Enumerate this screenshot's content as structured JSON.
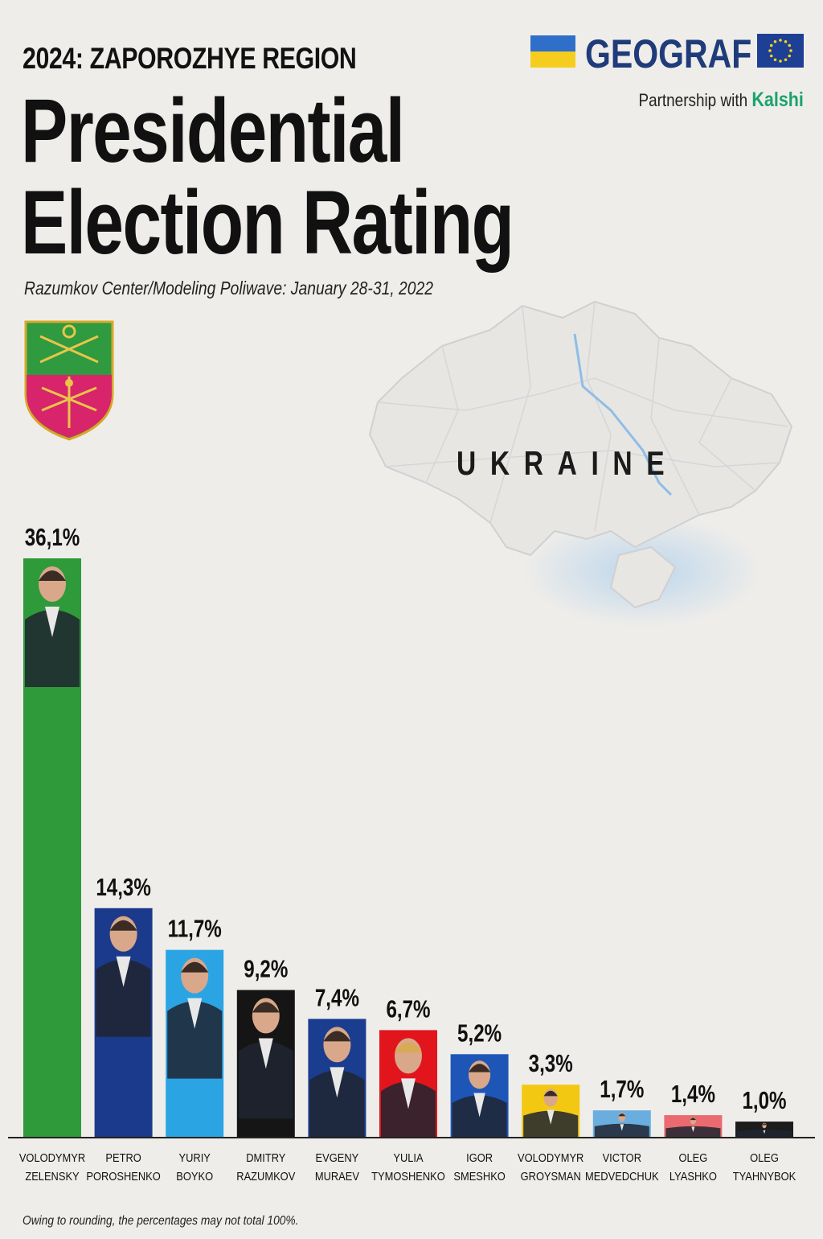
{
  "header": {
    "region_title": "2024: ZAPOROZHYE REGION",
    "title_line1": "Presidential",
    "title_line2": "Election Rating",
    "source": "Razumkov Center/Modeling Poliwave: January 28-31, 2022"
  },
  "brand": {
    "name": "GEOGRAF",
    "partnership_prefix": "Partnership with",
    "partner": "Kalshi"
  },
  "map": {
    "country_label": "UKRAINE"
  },
  "footnote": "Owing to rounding, the percentages may not total 100%.",
  "colors": {
    "background": "#efedea",
    "brand": "#1f3b7a",
    "kalshi": "#1aa36b"
  },
  "chart_data": {
    "type": "bar",
    "ylim": [
      0,
      36.1
    ],
    "grid": false,
    "legend": "none",
    "categories": [
      [
        "VOLODYMYR",
        "ZELENSKY"
      ],
      [
        "PETRO",
        "POROSHENKO"
      ],
      [
        "YURIY",
        "BOYKO"
      ],
      [
        "DMITRY",
        "RAZUMKOV"
      ],
      [
        "EVGENY",
        "MURAEV"
      ],
      [
        "YULIA",
        "TYMOSHENKO"
      ],
      [
        "IGOR",
        "SMESHKO"
      ],
      [
        "VOLODYMYR",
        "GROYSMAN"
      ],
      [
        "VICTOR",
        "MEDVEDCHUK"
      ],
      [
        "OLEG",
        "LYASHKO"
      ],
      [
        "OLEG",
        "TYAHNYBOK"
      ]
    ],
    "values": [
      36.1,
      14.3,
      11.7,
      9.2,
      7.4,
      6.7,
      5.2,
      3.3,
      1.7,
      1.4,
      1.0
    ],
    "labels": [
      "36,1%",
      "14,3%",
      "11,7%",
      "9,2%",
      "7,4%",
      "6,7%",
      "5,2%",
      "3,3%",
      "1,7%",
      "1,4%",
      "1,0%"
    ],
    "bar_colors": [
      "#2e9a3a",
      "#1c3a8c",
      "#2ba4e3",
      "#151515",
      "#1b3d8f",
      "#e2151d",
      "#1e56b8",
      "#f2c812",
      "#6aaee0",
      "#ea6a6f",
      "#1c1c1c"
    ]
  }
}
